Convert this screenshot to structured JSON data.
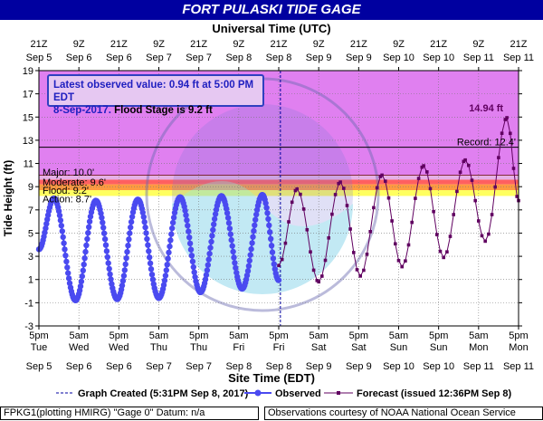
{
  "header": {
    "title": "FORT PULASKI TIDE GAGE"
  },
  "info_box": {
    "line1": "Latest observed value: 0.94 ft at 5:00 PM EDT",
    "line2_date": "8-Sep-2017.",
    "line2_flood": "Flood Stage is 9.2 ft"
  },
  "legend": {
    "graph_created": "Graph Created (5:31PM Sep 8, 2017)",
    "observed": "Observed",
    "forecast": "Forecast (issued 12:36PM Sep 8)"
  },
  "footer": {
    "left": "FPKG1(plotting HMIRG) \"Gage 0\" Datum: n/a",
    "right": "Observations courtesy of NOAA National Ocean Service"
  },
  "colors": {
    "title_bg": "#0000a0",
    "observed": "#4a4af0",
    "forecast": "#600060",
    "record_band": "#e080f0",
    "major_band": "#e6b0e6",
    "moderate_band": "#ff6060",
    "minor_band": "#ff9a40",
    "action_band": "#ffff60"
  },
  "chart_data": {
    "type": "line",
    "title": "FORT PULASKI TIDE GAGE",
    "top_axis_title": "Universal Time (UTC)",
    "xlabel": "Site Time (EDT)",
    "ylabel": "Tide Height (ft)",
    "ylim": [
      -3,
      19
    ],
    "yticks": [
      -3,
      -1,
      1,
      3,
      5,
      7,
      9,
      11,
      13,
      15,
      17,
      19
    ],
    "xlim_hours": [
      0,
      144
    ],
    "x_origin": "Sep 5 5pm EDT",
    "bottom_ticks": [
      {
        "h": 0,
        "time": "5pm",
        "day": "Tue",
        "date": "Sep 5"
      },
      {
        "h": 12,
        "time": "5am",
        "day": "Wed",
        "date": "Sep 6"
      },
      {
        "h": 24,
        "time": "5pm",
        "day": "Wed",
        "date": "Sep 6"
      },
      {
        "h": 36,
        "time": "5am",
        "day": "Thu",
        "date": "Sep 7"
      },
      {
        "h": 48,
        "time": "5pm",
        "day": "Thu",
        "date": "Sep 7"
      },
      {
        "h": 60,
        "time": "5am",
        "day": "Fri",
        "date": "Sep 8"
      },
      {
        "h": 72,
        "time": "5pm",
        "day": "Fri",
        "date": "Sep 8"
      },
      {
        "h": 84,
        "time": "5am",
        "day": "Sat",
        "date": "Sep 9"
      },
      {
        "h": 96,
        "time": "5pm",
        "day": "Sat",
        "date": "Sep 9"
      },
      {
        "h": 108,
        "time": "5am",
        "day": "Sun",
        "date": "Sep 10"
      },
      {
        "h": 120,
        "time": "5pm",
        "day": "Sun",
        "date": "Sep 10"
      },
      {
        "h": 132,
        "time": "5am",
        "day": "Mon",
        "date": "Sep 11"
      },
      {
        "h": 144,
        "time": "5pm",
        "day": "Mon",
        "date": "Sep 11"
      }
    ],
    "top_ticks": [
      {
        "h": 0,
        "time": "21Z",
        "date": "Sep 5"
      },
      {
        "h": 12,
        "time": "9Z",
        "date": "Sep 6"
      },
      {
        "h": 24,
        "time": "21Z",
        "date": "Sep 6"
      },
      {
        "h": 36,
        "time": "9Z",
        "date": "Sep 7"
      },
      {
        "h": 48,
        "time": "21Z",
        "date": "Sep 7"
      },
      {
        "h": 60,
        "time": "9Z",
        "date": "Sep 8"
      },
      {
        "h": 72,
        "time": "21Z",
        "date": "Sep 8"
      },
      {
        "h": 84,
        "time": "9Z",
        "date": "Sep 9"
      },
      {
        "h": 96,
        "time": "21Z",
        "date": "Sep 9"
      },
      {
        "h": 108,
        "time": "9Z",
        "date": "Sep 10"
      },
      {
        "h": 120,
        "time": "21Z",
        "date": "Sep 10"
      },
      {
        "h": 132,
        "time": "9Z",
        "date": "Sep 11"
      },
      {
        "h": 144,
        "time": "21Z",
        "date": "Sep 11"
      }
    ],
    "flood_categories": [
      {
        "name": "Record",
        "label": "Record: 12.4'",
        "value": 12.4
      },
      {
        "name": "Major",
        "label": "Major: 10.0'",
        "value": 10.0
      },
      {
        "name": "Moderate",
        "label": "Moderate: 9.6'",
        "value": 9.6
      },
      {
        "name": "Flood",
        "label": "Flood: 9.2'",
        "value": 9.2
      },
      {
        "name": "Action",
        "label": "Action: 8.7'",
        "value": 8.7
      }
    ],
    "graph_created_hour": 72.5,
    "peak_annotation": {
      "label": "14.94 ft",
      "value": 14.94
    },
    "observed_extrema": [
      {
        "h": 0,
        "v": 3.6
      },
      {
        "h": 4.5,
        "v": 8.0
      },
      {
        "h": 11,
        "v": -0.8
      },
      {
        "h": 17.1,
        "v": 7.8
      },
      {
        "h": 23.5,
        "v": -0.7
      },
      {
        "h": 29.7,
        "v": 7.9
      },
      {
        "h": 36,
        "v": -0.6
      },
      {
        "h": 42.4,
        "v": 8.1
      },
      {
        "h": 48.5,
        "v": -0.1
      },
      {
        "h": 54.8,
        "v": 8.2
      },
      {
        "h": 61,
        "v": 0.2
      },
      {
        "h": 67.1,
        "v": 8.3
      },
      {
        "h": 72,
        "v": 0.94
      }
    ],
    "forecast_extrema": [
      {
        "h": 72,
        "v": 2.2
      },
      {
        "h": 77.5,
        "v": 8.8
      },
      {
        "h": 84,
        "v": 0.8
      },
      {
        "h": 90.5,
        "v": 9.4
      },
      {
        "h": 96.5,
        "v": 1.3
      },
      {
        "h": 103,
        "v": 10.0
      },
      {
        "h": 109,
        "v": 2.1
      },
      {
        "h": 115.5,
        "v": 10.8
      },
      {
        "h": 121.5,
        "v": 2.9
      },
      {
        "h": 128,
        "v": 11.3
      },
      {
        "h": 134,
        "v": 4.3
      },
      {
        "h": 140.5,
        "v": 14.94
      },
      {
        "h": 144,
        "v": 7.8
      }
    ]
  }
}
